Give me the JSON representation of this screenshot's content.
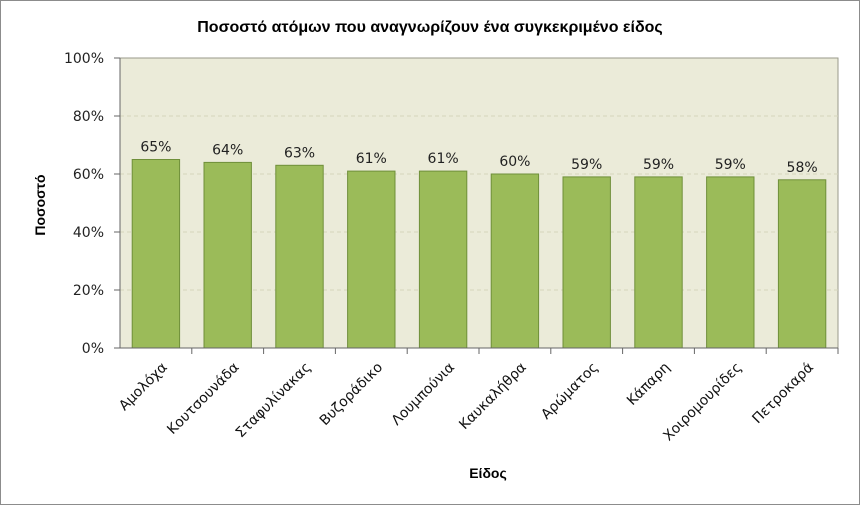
{
  "chart_data": {
    "type": "bar",
    "title": "Ποσοστό ατόμων που αναγνωρίζουν ένα συγκεκριμένο είδος",
    "xlabel": "Είδος",
    "ylabel": "Ποσοστό",
    "categories": [
      "Αμολόχα",
      "Κουτσουνάδα",
      "Σταφυλίνακας",
      "Βυζοράδικο",
      "Λουμπούνια",
      "Καυκαλήθρα",
      "Αρώματος",
      "Κάπαρη",
      "Χοιρομουρίδες",
      "Πετροκαρά"
    ],
    "values": [
      65,
      64,
      63,
      61,
      61,
      60,
      59,
      59,
      59,
      58
    ],
    "data_labels": [
      "65%",
      "64%",
      "63%",
      "61%",
      "61%",
      "60%",
      "59%",
      "59%",
      "59%",
      "58%"
    ],
    "ylim": [
      0,
      100
    ],
    "yticks": [
      "0%",
      "20%",
      "40%",
      "60%",
      "80%",
      "100%"
    ],
    "grid": true,
    "legend": "none",
    "colors": {
      "bar_fill": "#9bbb59",
      "bar_stroke": "#6f8f3a",
      "plot_background": "#ebebd9",
      "gridline": "#d4d4bc"
    }
  }
}
